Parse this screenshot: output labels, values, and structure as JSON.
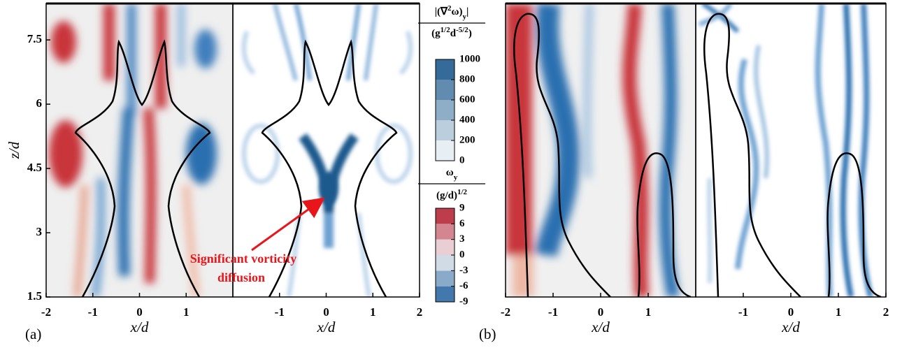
{
  "chart_data": [
    {
      "type": "field",
      "quantity": "vorticity",
      "panel_label": "(a)",
      "xlabel": "x/d",
      "ylabel": "z/d",
      "xlim": [
        -2,
        2
      ],
      "ylim": [
        1.5,
        8.35
      ],
      "xticks": [
        -2,
        -1,
        0,
        1
      ],
      "yticks": [
        1.5,
        3,
        4.5,
        6,
        7.5
      ]
    },
    {
      "type": "field",
      "quantity": "diffusion",
      "xlabel": "x/d",
      "xlim": [
        -2,
        2
      ],
      "ylim": [
        1.5,
        8.35
      ],
      "xticks": [
        -1,
        0,
        1,
        2
      ],
      "annotation": [
        "Significant vorticity",
        "diffusion"
      ]
    },
    {
      "type": "field",
      "quantity": "vorticity",
      "panel_label": "(b)",
      "xlabel": "x/d",
      "xlim": [
        -2,
        2
      ],
      "ylim": [
        1.5,
        8.35
      ],
      "xticks": [
        -2,
        -1,
        0,
        1
      ]
    },
    {
      "type": "field",
      "quantity": "diffusion",
      "xlabel": "x/d",
      "xlim": [
        -2,
        2
      ],
      "ylim": [
        1.5,
        8.35
      ],
      "xticks": [
        -1,
        0,
        1,
        2
      ]
    }
  ],
  "colorbars": [
    {
      "title": [
        {
          "text": "|(∇"
        },
        {
          "text": "2",
          "script": "sup"
        },
        {
          "text": "ω)"
        },
        {
          "text": "y",
          "script": "sub"
        },
        {
          "text": "|"
        }
      ],
      "units": [
        {
          "text": "(g"
        },
        {
          "text": "1/2",
          "script": "sup"
        },
        {
          "text": "d"
        },
        {
          "text": "-5/2",
          "script": "sup"
        },
        {
          "text": ")"
        }
      ],
      "lim": [
        0,
        1000
      ],
      "ticks": [
        0,
        200,
        400,
        600,
        800,
        1000
      ],
      "colors": [
        "#ffffff",
        "#1d5a8e"
      ]
    },
    {
      "title": [
        {
          "text": "ω"
        },
        {
          "text": "y",
          "script": "sub"
        }
      ],
      "units": [
        {
          "text": "(g/d)"
        },
        {
          "text": "1/2",
          "script": "sup"
        }
      ],
      "lim": [
        -9,
        9
      ],
      "ticks": [
        -9,
        -6,
        -3,
        0,
        3,
        6,
        9
      ],
      "colors": [
        "#1f5f9e",
        "#f4f4f4",
        "#b2182b"
      ]
    }
  ]
}
